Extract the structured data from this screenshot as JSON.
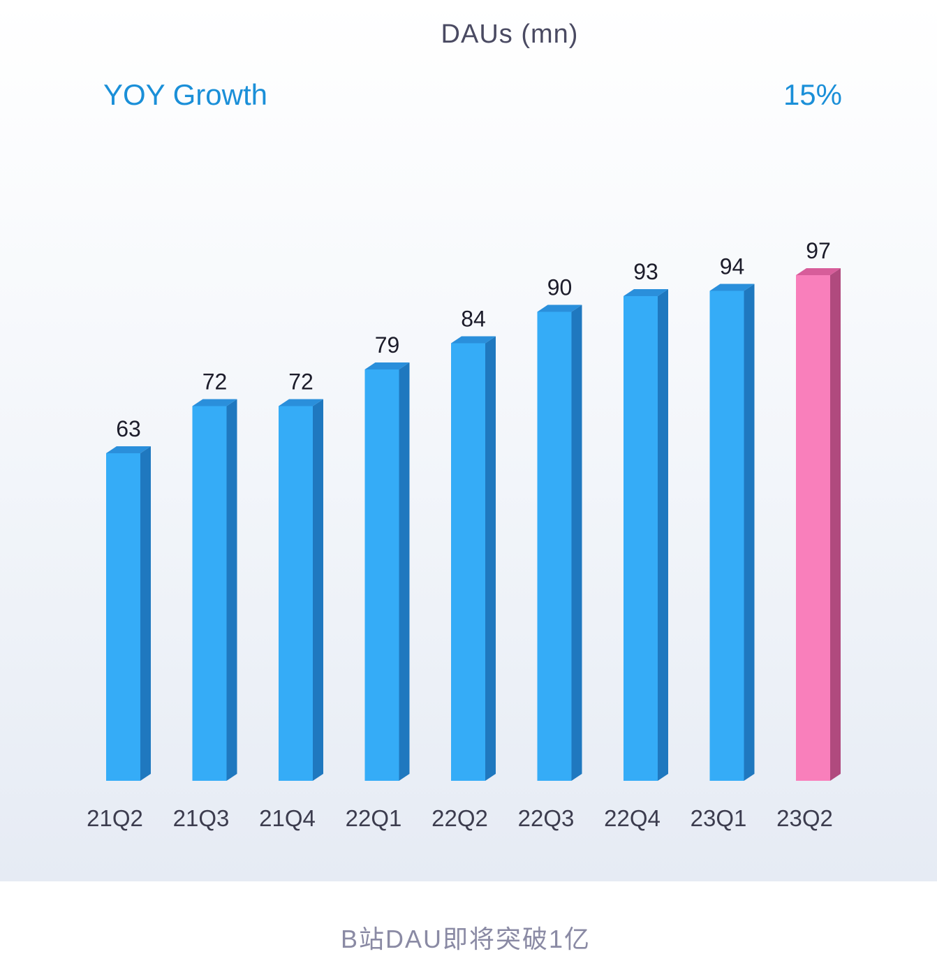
{
  "chart_data": {
    "type": "bar",
    "title": "DAUs (mn)",
    "categories": [
      "21Q2",
      "21Q3",
      "21Q4",
      "22Q1",
      "22Q2",
      "22Q3",
      "22Q4",
      "23Q1",
      "23Q2"
    ],
    "values": [
      63,
      72,
      72,
      79,
      84,
      90,
      93,
      94,
      97
    ],
    "ylim": [
      0,
      100
    ],
    "grid": false,
    "data_labels": true,
    "highlight_index": 8,
    "annotation": {
      "label": "YOY Growth",
      "value": "15%"
    },
    "colors": {
      "bar_front": "#35acf7",
      "bar_side": "#1f78bf",
      "bar_top": "#2a8fdb",
      "highlight_front": "#f97fbb",
      "highlight_side": "#b04a7e",
      "highlight_top": "#d75d9a",
      "annotation": "#1a8fd8"
    }
  },
  "caption": "B站DAU即将突破1亿"
}
